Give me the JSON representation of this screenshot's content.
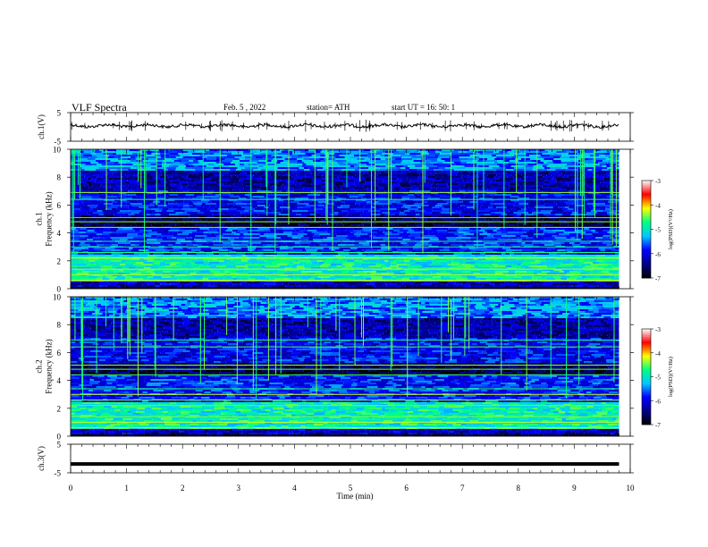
{
  "header": {
    "title": "VLF  Spectra",
    "date": "Feb. 5  , 2022",
    "station": "station= ATH",
    "start": "start  UT  =    16: 50: 1"
  },
  "chart_data": [
    {
      "type": "line",
      "name": "channel-1-waveform",
      "ylabel": "ch.1(V)",
      "ylim": [
        -5,
        5
      ],
      "yticks": [
        "5",
        "-5"
      ],
      "xlim": [
        0,
        10
      ],
      "trace_level": 0.4,
      "trace_end_min": 9.8,
      "color": "#000000"
    },
    {
      "type": "heatmap",
      "name": "channel-1-spectrogram",
      "ylabel": "ch.1\nFrequency  (kHz)",
      "ylim": [
        0,
        10
      ],
      "yticks": [
        "0",
        "2",
        "4",
        "6",
        "8",
        "10"
      ],
      "xlim": [
        0,
        10
      ],
      "data_end_min": 9.8,
      "colorbar": {
        "label": "log(PSD)(V²/Hz)",
        "range": [
          -7,
          -3
        ],
        "ticks": [
          "-3",
          "-4",
          "-5",
          "-6",
          "-7"
        ]
      }
    },
    {
      "type": "heatmap",
      "name": "channel-2-spectrogram",
      "ylabel": "ch.2\nFrequency  (kHz)",
      "ylim": [
        0,
        10
      ],
      "yticks": [
        "0",
        "2",
        "4",
        "6",
        "8",
        "10"
      ],
      "xlim": [
        0,
        10
      ],
      "data_end_min": 9.8,
      "colorbar": {
        "label": "log(PSD)(V²/Hz)",
        "range": [
          -7,
          -3
        ],
        "ticks": [
          "-3",
          "-4",
          "-5",
          "-6",
          "-7"
        ]
      }
    },
    {
      "type": "line",
      "name": "channel-3-waveform",
      "ylabel": "ch.3(V)",
      "ylim": [
        -5,
        5
      ],
      "yticks": [
        "5",
        "-5"
      ],
      "xlim": [
        0,
        10
      ],
      "trace_level": -1.9,
      "trace_end_min": 9.8,
      "color": "#000000"
    }
  ],
  "xaxis": {
    "label": "Time  (min)",
    "ticks": [
      "0",
      "1",
      "2",
      "3",
      "4",
      "5",
      "6",
      "7",
      "8",
      "9",
      "10"
    ]
  },
  "colormap": [
    "#000000",
    "#00008b",
    "#0000ff",
    "#00c8ff",
    "#00ff80",
    "#ffff00",
    "#ff0000",
    "#ffffff"
  ]
}
